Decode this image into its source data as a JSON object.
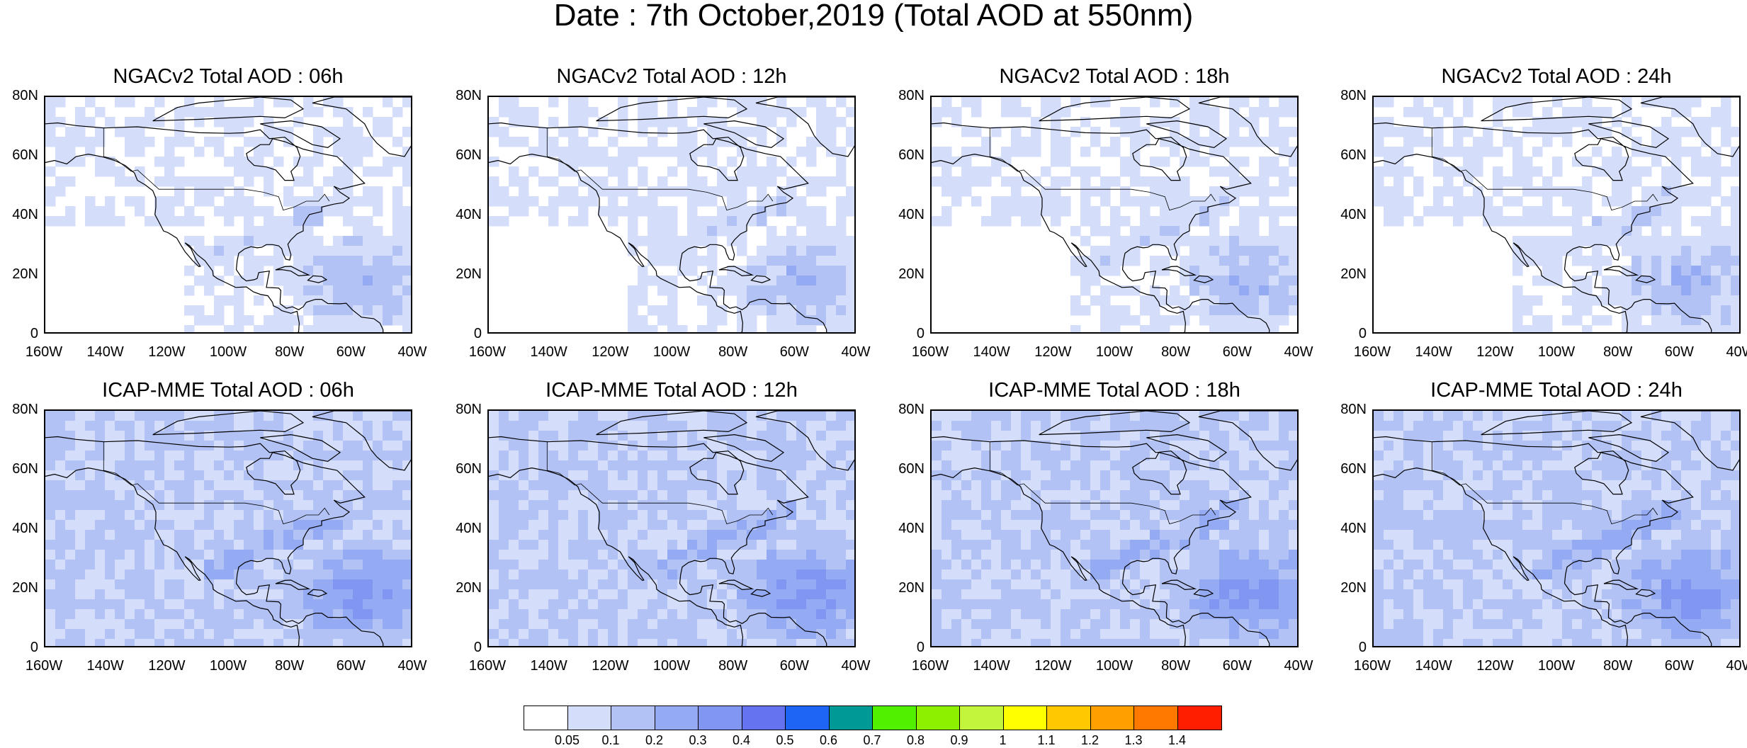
{
  "title": "Date : 7th October,2019 (Total AOD at 550nm)",
  "lat_labels": [
    "80N",
    "60N",
    "40N",
    "20N",
    "0"
  ],
  "lon_labels": [
    "160W",
    "140W",
    "120W",
    "100W",
    "80W",
    "60W",
    "40W"
  ],
  "panels": [
    {
      "title": "NGACv2 Total AOD : 06h",
      "model": "NGACv2",
      "hour": "06h"
    },
    {
      "title": "NGACv2 Total AOD : 12h",
      "model": "NGACv2",
      "hour": "12h"
    },
    {
      "title": "NGACv2 Total AOD : 18h",
      "model": "NGACv2",
      "hour": "18h"
    },
    {
      "title": "NGACv2 Total AOD : 24h",
      "model": "NGACv2",
      "hour": "24h"
    },
    {
      "title": "ICAP-MME Total AOD : 06h",
      "model": "ICAP-MME",
      "hour": "06h"
    },
    {
      "title": "ICAP-MME Total AOD : 12h",
      "model": "ICAP-MME",
      "hour": "12h"
    },
    {
      "title": "ICAP-MME Total AOD : 18h",
      "model": "ICAP-MME",
      "hour": "18h"
    },
    {
      "title": "ICAP-MME Total AOD : 24h",
      "model": "ICAP-MME",
      "hour": "24h"
    }
  ],
  "colorbar": {
    "labels": [
      "0.05",
      "0.1",
      "0.2",
      "0.3",
      "0.4",
      "0.5",
      "0.6",
      "0.7",
      "0.8",
      "0.9",
      "1",
      "1.1",
      "1.2",
      "1.3",
      "1.4"
    ],
    "colors": [
      "#ffffff",
      "#d4defa",
      "#b2c2f5",
      "#94aaf2",
      "#8096f0",
      "#6673f0",
      "#1e64f5",
      "#009a96",
      "#50f000",
      "#8cf000",
      "#c3f53c",
      "#ffff00",
      "#ffc800",
      "#ffa000",
      "#ff7800",
      "#ff1e00"
    ]
  },
  "colors": {
    "land_outline": "#000000",
    "aod_low": "#d4defa",
    "aod_mid": "#b2c2f5",
    "aod_high": "#8096f0"
  }
}
